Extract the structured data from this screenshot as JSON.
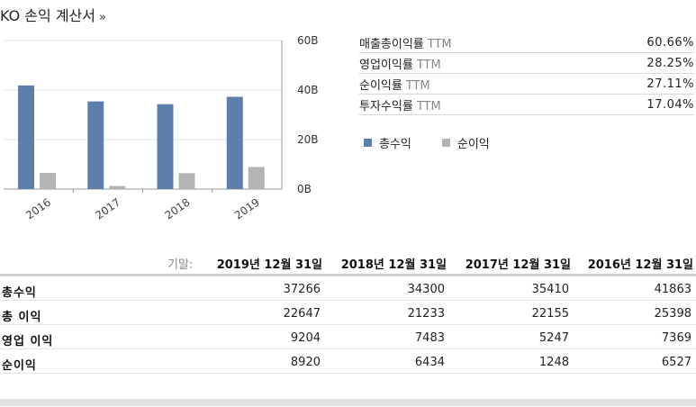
{
  "title": "KO 손익 계산서",
  "title_chevron": "»",
  "chart_data": {
    "type": "bar",
    "categories": [
      "2016",
      "2017",
      "2018",
      "2019"
    ],
    "series": [
      {
        "name": "총수익",
        "values": [
          41.863,
          35.41,
          34.3,
          37.266
        ],
        "color": "#5b7faa"
      },
      {
        "name": "순이익",
        "values": [
          6.527,
          1.248,
          6.434,
          8.92
        ],
        "color": "#b4b4b4"
      }
    ],
    "yticks": [
      "60B",
      "40B",
      "20B",
      "0B"
    ],
    "ylim": [
      0,
      60
    ],
    "unit": "B",
    "grid": true
  },
  "ratios": [
    {
      "label": "매출총이익률",
      "ttm": "TTM",
      "value": "60.66%"
    },
    {
      "label": "영업이익률",
      "ttm": "TTM",
      "value": "28.25%"
    },
    {
      "label": "순이익률",
      "ttm": "TTM",
      "value": "27.11%"
    },
    {
      "label": "투자수익률",
      "ttm": "TTM",
      "value": "17.04%"
    }
  ],
  "legend": [
    {
      "label": "총수익",
      "color": "#5b7faa"
    },
    {
      "label": "순이익",
      "color": "#b4b4b4"
    }
  ],
  "table": {
    "period_label": "기말:",
    "columns": [
      "2019년 12월 31일",
      "2018년 12월 31일",
      "2017년 12월 31일",
      "2016년 12월 31일"
    ],
    "rows": [
      {
        "name": "총수익",
        "values": [
          "37266",
          "34300",
          "35410",
          "41863"
        ]
      },
      {
        "name": "총 이익",
        "values": [
          "22647",
          "21233",
          "22155",
          "25398"
        ]
      },
      {
        "name": "영업 이익",
        "values": [
          "9204",
          "7483",
          "5247",
          "7369"
        ]
      },
      {
        "name": "순이익",
        "values": [
          "8920",
          "6434",
          "1248",
          "6527"
        ]
      }
    ]
  }
}
